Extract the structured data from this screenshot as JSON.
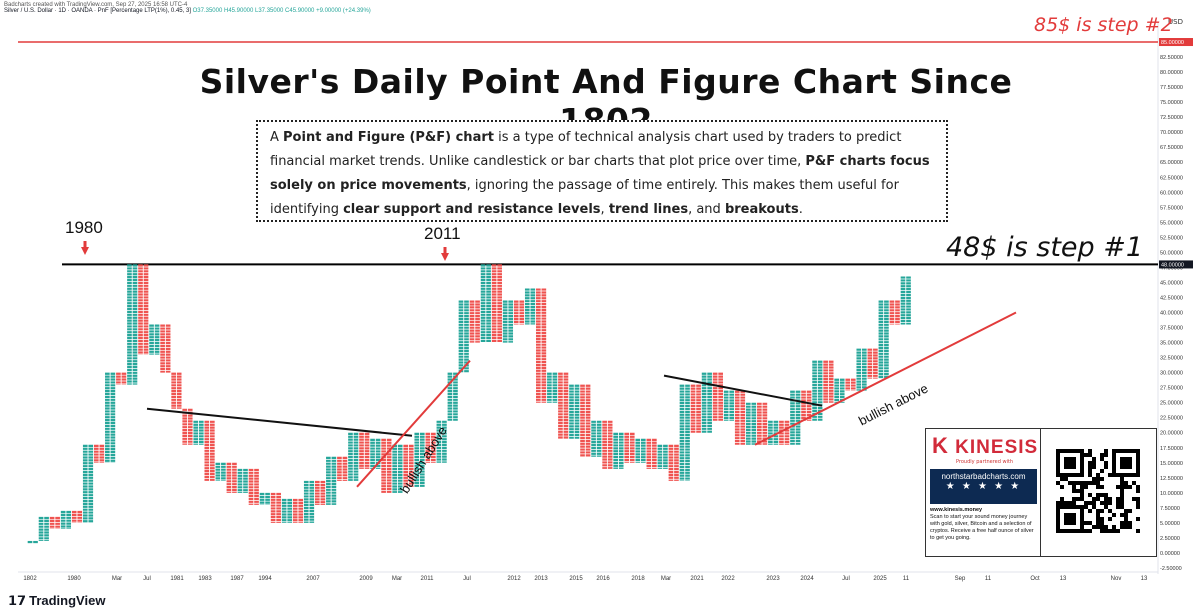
{
  "header": {
    "credit": "Badcharts created with TradingView.com, Sep 27, 2025 16:58 UTC-4",
    "symbol_line": "Silver / U.S. Dollar · 1D · OANDA · PnF [Percentage LTP(1%), 0.45, 3]",
    "ohlc": "O37.35000  H45.90000  L37.35000  C45.90000  +9.00000 (+24.39%)",
    "currency": "USD"
  },
  "title": "Silver's Daily Point And Figure Chart Since 1802",
  "description": {
    "parts": [
      {
        "t": "A ",
        "b": false
      },
      {
        "t": "Point and Figure (P&F) chart",
        "b": true
      },
      {
        "t": " is a type of technical analysis chart used by traders to predict financial market trends. Unlike candlestick or bar charts that plot price over time, ",
        "b": false
      },
      {
        "t": "P&F charts focus solely on price movements",
        "b": true
      },
      {
        "t": ", ignoring the passage of time entirely. This makes them useful for identifying ",
        "b": false
      },
      {
        "t": "clear support and resistance levels",
        "b": true
      },
      {
        "t": ", ",
        "b": false
      },
      {
        "t": "trend lines",
        "b": true
      },
      {
        "t": ", and ",
        "b": false
      },
      {
        "t": "breakouts",
        "b": true
      },
      {
        "t": ".",
        "b": false
      }
    ]
  },
  "annotations": {
    "step1": "48$ is step #1",
    "step2": "85$ is step #2",
    "year_1980": "1980",
    "year_2011": "2011",
    "bullish1": "bullish above",
    "bullish2": "bullish above"
  },
  "ad": {
    "brand": "KINESIS",
    "tagline": "Proudly partnered with",
    "site": "northstarbadcharts.com",
    "stars": "★ ★ ★ ★ ★",
    "text_head": "www.kinesis.money",
    "text_body": "Scan to start your sound money journey with gold, silver, Bitcoin and a selection of cryptos. Receive a free half ounce of silver to get you going."
  },
  "footer": {
    "brand": "TradingView"
  },
  "colors": {
    "up": "#26a69a",
    "down": "#ef5350",
    "resistance": "#000000",
    "step2": "#e23b3b"
  },
  "chart_data": {
    "type": "point-and-figure",
    "title": "Silver's Daily Point And Figure Chart Since 1802",
    "y_ticks": [
      -2.5,
      0,
      2.5,
      5,
      7.5,
      10,
      12.5,
      15,
      17.5,
      20,
      22.5,
      25,
      27.5,
      30,
      32.5,
      35,
      37.5,
      40,
      42.5,
      45,
      47.5,
      50,
      52.5,
      55,
      57.5,
      60,
      62.5,
      65,
      67.5,
      70,
      72.5,
      75,
      77.5,
      80,
      82.5,
      85
    ],
    "y_highlight": [
      48,
      85
    ],
    "ylim": [
      -2.5,
      87
    ],
    "x_tick_labels": [
      "1802",
      "1980",
      "Mar",
      "Jul",
      "1981",
      "1983",
      "1987",
      "1994",
      "2007",
      "2009",
      "Mar",
      "2011",
      "Jul",
      "2012",
      "2013",
      "2015",
      "2016",
      "2018",
      "Mar",
      "2021",
      "2022",
      "2023",
      "2024",
      "Jul",
      "2025",
      "11",
      "Sep",
      "11",
      "Oct",
      "13",
      "Nov",
      "13"
    ],
    "levels": [
      {
        "label": "step #1",
        "value": 48
      },
      {
        "label": "step #2",
        "value": 85
      }
    ],
    "column_extremes": [
      2,
      6,
      4,
      7,
      5,
      18,
      15,
      30,
      28,
      48,
      33,
      38,
      30,
      24,
      18,
      22,
      12,
      15,
      10,
      14,
      8,
      10,
      5,
      9,
      5,
      12,
      8,
      16,
      12,
      20,
      14,
      19,
      10,
      18,
      11,
      20,
      15,
      22,
      30,
      42,
      35,
      48,
      35,
      42,
      38,
      44,
      25,
      30,
      19,
      28,
      16,
      22,
      14,
      20,
      15,
      19,
      14,
      18,
      12,
      28,
      20,
      30,
      22,
      27,
      18,
      25,
      18,
      22,
      18,
      27,
      22,
      32,
      25,
      29,
      27,
      34,
      29,
      42,
      38,
      46
    ],
    "trend_lines": [
      {
        "type": "resistance",
        "from": {
          "x": "1980",
          "y": 24
        },
        "to": {
          "x": "Mar",
          "y": 19.5
        }
      },
      {
        "type": "support",
        "from": {
          "x": "2009",
          "y": 11
        },
        "to": {
          "x": "Jul",
          "y": 32
        }
      },
      {
        "type": "resistance",
        "from": {
          "x": "Mar",
          "y": 29.5
        },
        "to": {
          "x": "2024",
          "y": 24.5
        }
      },
      {
        "type": "support",
        "from": {
          "x": "2023",
          "y": 18
        },
        "to": {
          "x": "Oct",
          "y": 40
        }
      }
    ]
  }
}
